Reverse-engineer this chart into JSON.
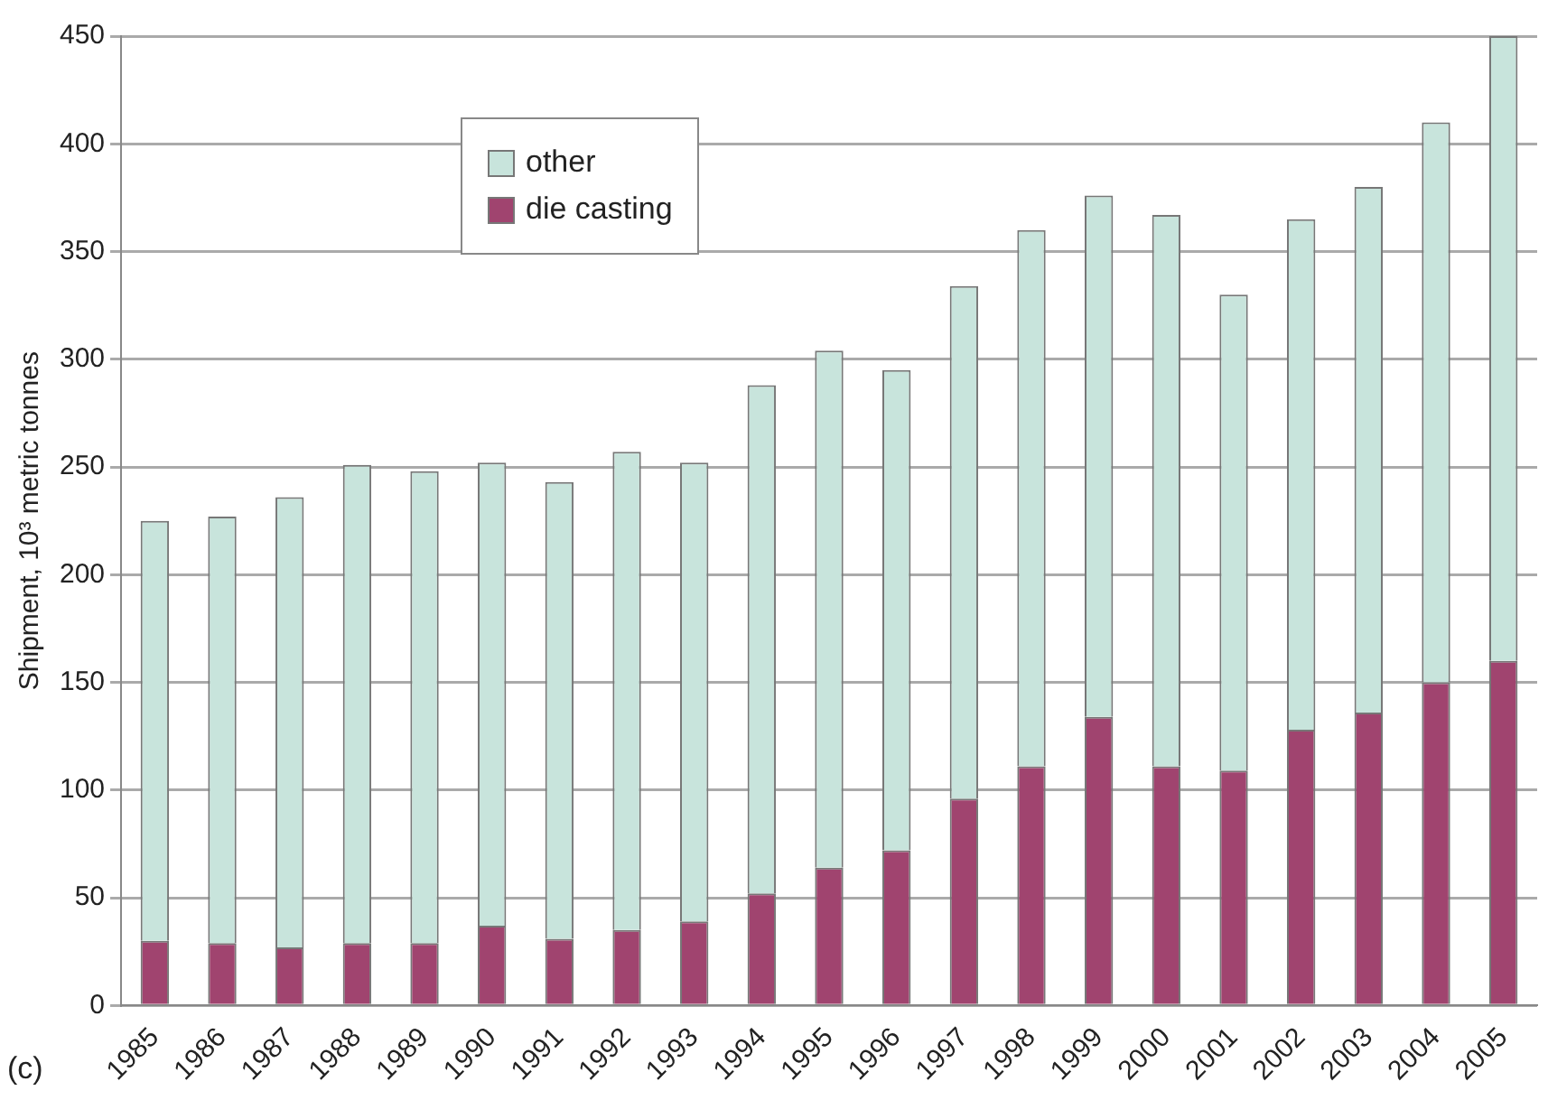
{
  "chart_data": {
    "type": "bar",
    "stacked": true,
    "ylabel": "Shipment, 10³ metric tonnes",
    "categories": [
      "1985",
      "1986",
      "1987",
      "1988",
      "1989",
      "1990",
      "1991",
      "1992",
      "1993",
      "1994",
      "1995",
      "1996",
      "1997",
      "1998",
      "1999",
      "2000",
      "2001",
      "2002",
      "2003",
      "2004",
      "2005"
    ],
    "series": [
      {
        "name": "die casting",
        "color": "#a0446f",
        "values": [
          30,
          29,
          27,
          29,
          29,
          37,
          31,
          35,
          39,
          52,
          64,
          72,
          96,
          111,
          134,
          111,
          109,
          128,
          136,
          150,
          160
        ]
      },
      {
        "name": "other",
        "color": "#c8e4dc",
        "values": [
          195,
          198,
          209,
          222,
          219,
          215,
          212,
          222,
          213,
          236,
          240,
          223,
          238,
          249,
          242,
          256,
          221,
          237,
          244,
          260,
          290
        ]
      }
    ],
    "ylim": [
      0,
      450
    ],
    "yticks": [
      0,
      50,
      100,
      150,
      200,
      250,
      300,
      350,
      400,
      450
    ],
    "grid": "y",
    "legend": "top left",
    "annotations": [
      "(c)"
    ]
  }
}
